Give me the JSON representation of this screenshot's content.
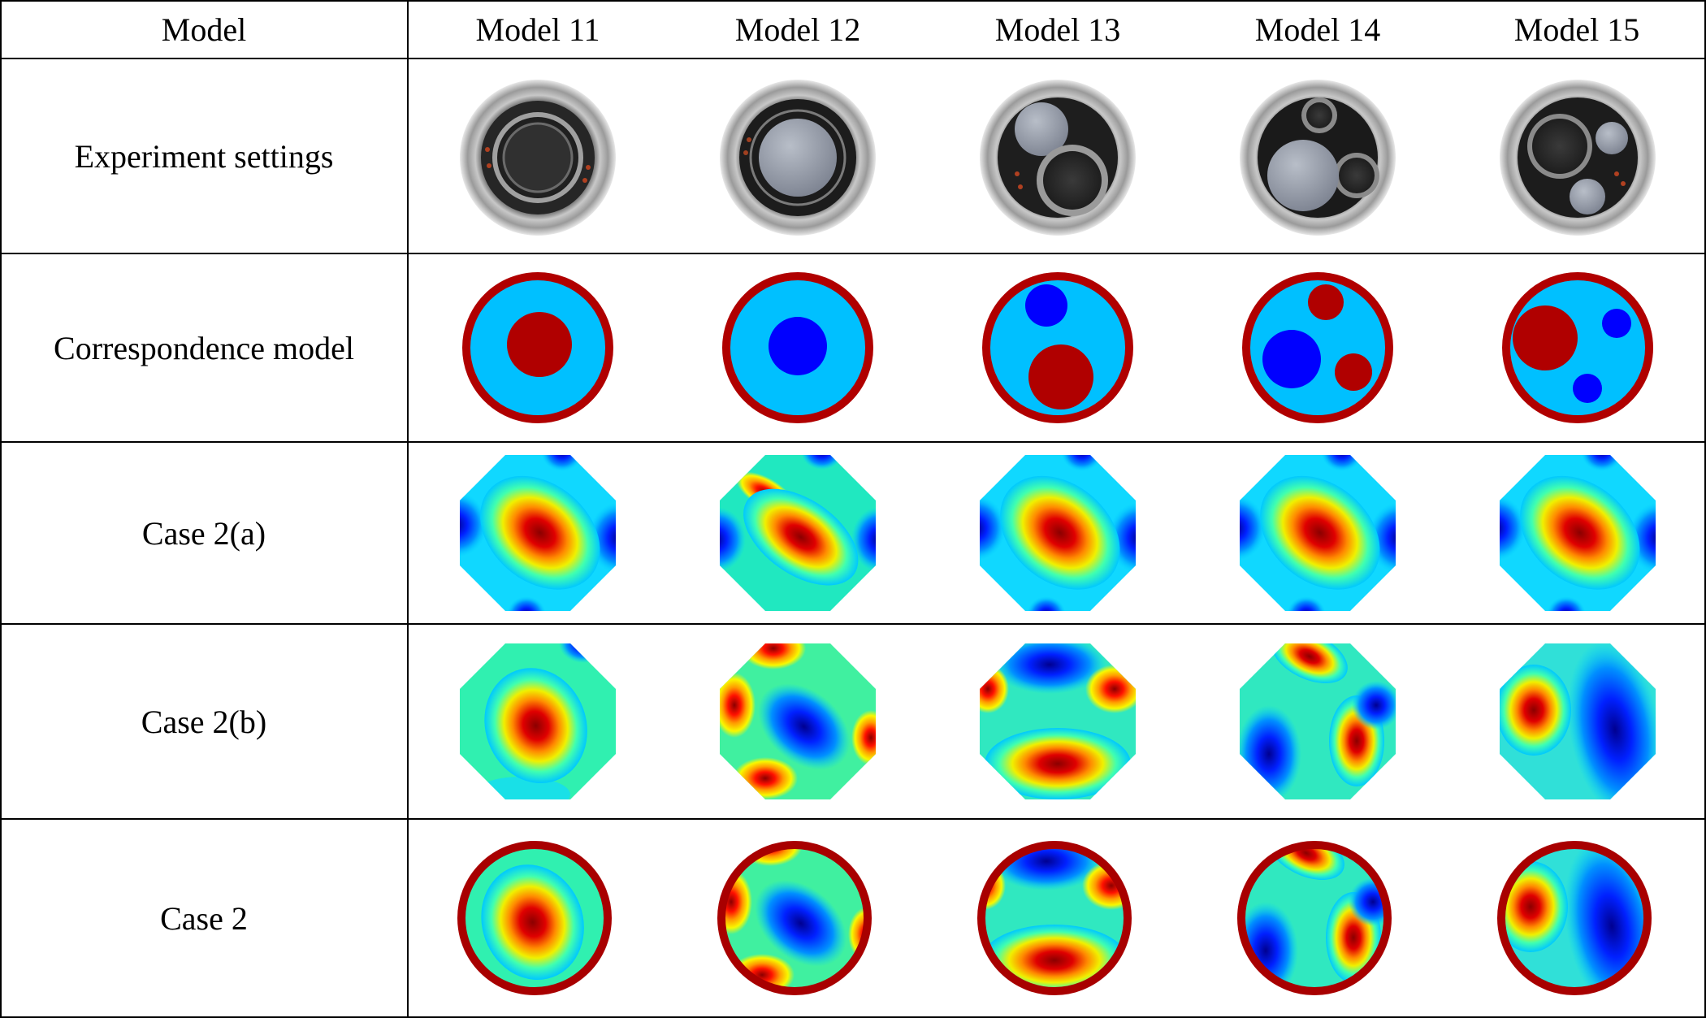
{
  "table": {
    "corner_header": "Model",
    "column_headers": [
      "Model 11",
      "Model 12",
      "Model 13",
      "Model 14",
      "Model 15"
    ],
    "row_labels": [
      "Experiment settings",
      "Correspondence model",
      "Case 2(a)",
      "Case 2(b)",
      "Case 2"
    ]
  },
  "colors": {
    "ring": "#b00000",
    "background_medium": "#00c0ff",
    "conductive_object": "#b00000",
    "insulating_object": "#0000ff",
    "tank_metal": "#8a8a8a",
    "plate_gray": "#9aa0aa",
    "gravel_dark": "#2a2a2a"
  },
  "icons": [
    "tank-photo-icon",
    "phantom-model-icon",
    "reconstruction-heatmap-icon"
  ]
}
